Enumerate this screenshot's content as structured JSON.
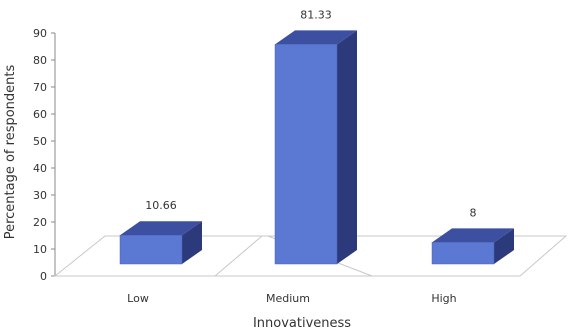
{
  "chart_data": {
    "type": "bar",
    "categories": [
      "Low",
      "Medium",
      "High"
    ],
    "values": [
      10.66,
      81.33,
      8
    ],
    "data_labels": [
      "10.66",
      "81.33",
      "8"
    ],
    "title": "",
    "xlabel": "Innovativeness",
    "ylabel": "Percentage of respondents",
    "ylim": [
      0,
      90
    ],
    "yticks": [
      0,
      10,
      20,
      30,
      40,
      50,
      60,
      70,
      80,
      90
    ],
    "grid": false,
    "legend": "none",
    "style": "3d-column",
    "colors": {
      "front": "#5b78d3",
      "top": "#3c4fa0",
      "side": "#2c3a7c",
      "floor": "#c8c8c8"
    }
  }
}
